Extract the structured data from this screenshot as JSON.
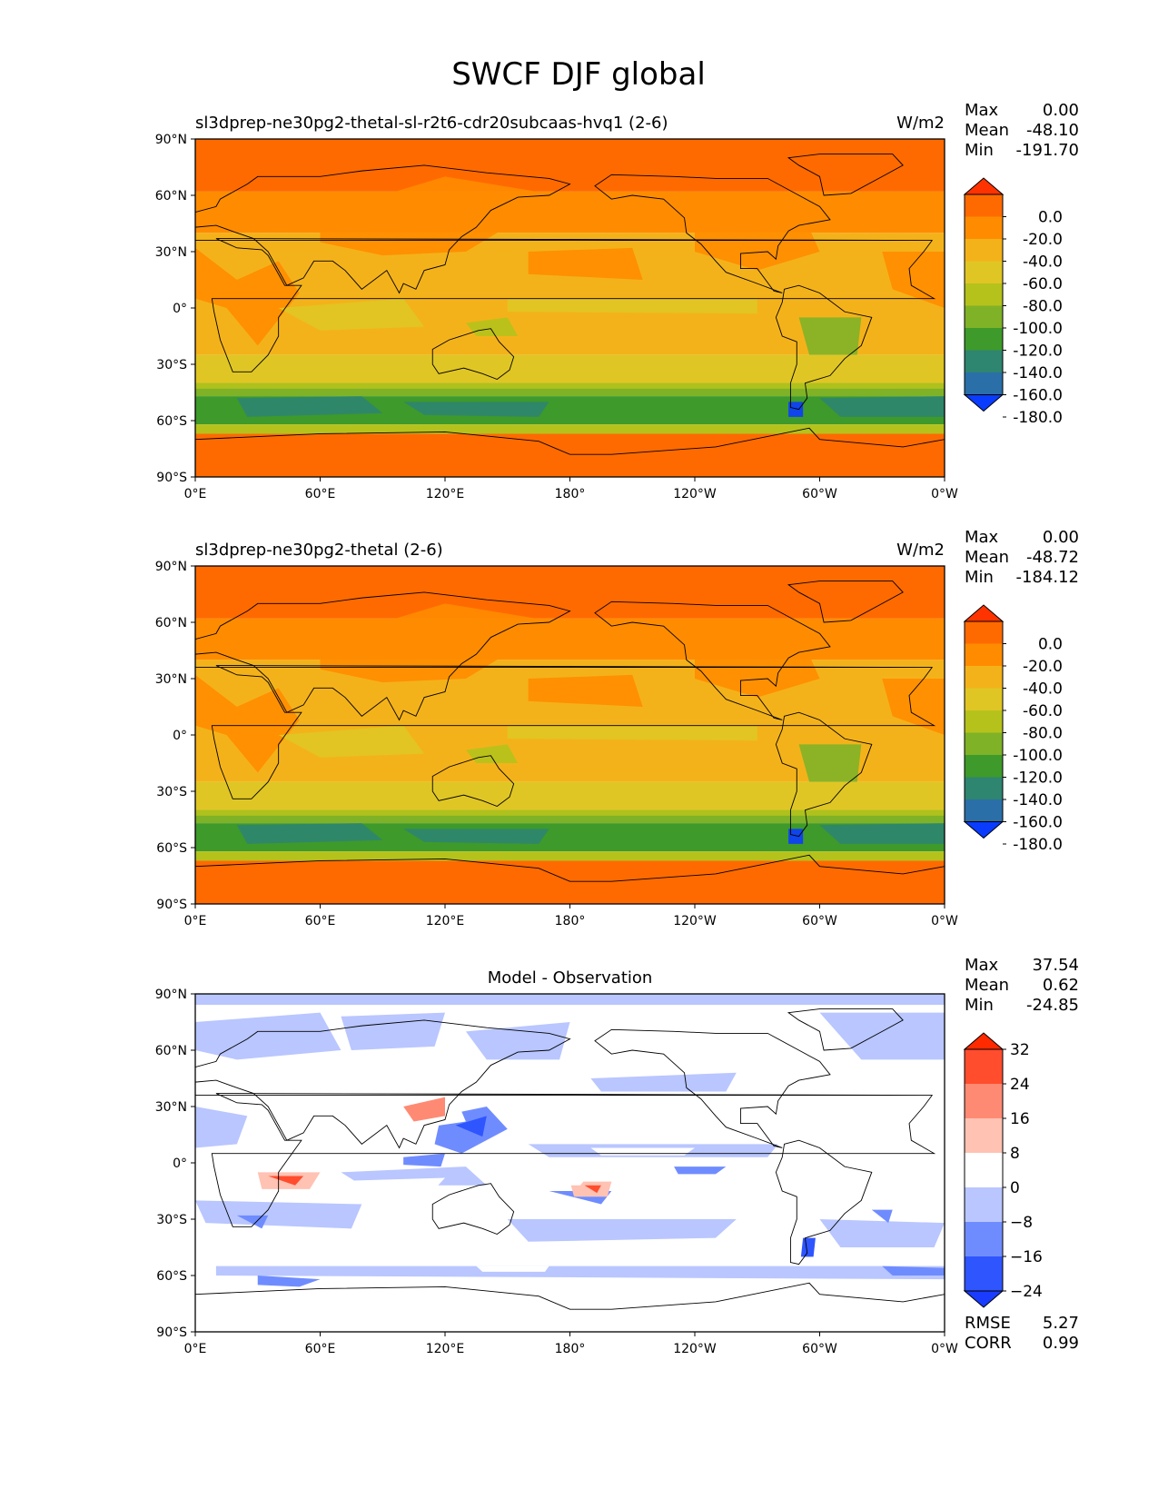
{
  "figure": {
    "title": "SWCF DJF global",
    "land_color": "#000000"
  },
  "axes_ticks": {
    "lat": [
      "90°N",
      "60°N",
      "30°N",
      "0°",
      "30°S",
      "60°S",
      "90°S"
    ],
    "lon": [
      "0°E",
      "60°E",
      "120°E",
      "180°",
      "120°W",
      "60°W",
      "0°W"
    ]
  },
  "panels": [
    {
      "id": "test",
      "title": "sl3dprep-ne30pg2-thetal-sl-r2t6-cdr20subcaas-hvq1 (2-6)",
      "units": "W/m2",
      "stats": [
        {
          "label": "Max",
          "value": "0.00"
        },
        {
          "label": "Mean",
          "value": "-48.10"
        },
        {
          "label": "Min",
          "value": "-191.70"
        }
      ],
      "colorbar": {
        "labels": [
          "0.0",
          "-20.0",
          "-40.0",
          "-60.0",
          "-80.0",
          "-100.0",
          "-120.0",
          "-140.0",
          "-160.0",
          "-180.0"
        ],
        "colors": [
          "#ff3300",
          "#ff6a00",
          "#ff8c00",
          "#f4b21a",
          "#e0c624",
          "#b5c21c",
          "#7fb227",
          "#3e9a2a",
          "#2e8570",
          "#2a6fa8",
          "#0a3cff"
        ]
      },
      "bands_deg": [
        {
          "lat": [
            90,
            62
          ],
          "level": 1
        },
        {
          "lat": [
            62,
            40
          ],
          "level": 2
        },
        {
          "lat": [
            40,
            8
          ],
          "level": 3
        },
        {
          "lat": [
            8,
            -25
          ],
          "level": 3
        },
        {
          "lat": [
            -25,
            -40
          ],
          "level": 4
        },
        {
          "lat": [
            -40,
            -47
          ],
          "level": 6
        },
        {
          "lat": [
            -47,
            -62
          ],
          "level": 7
        },
        {
          "lat": [
            -62,
            -67
          ],
          "level": 5
        },
        {
          "lat": [
            -67,
            -90
          ],
          "level": 1
        }
      ]
    },
    {
      "id": "reference",
      "title": "sl3dprep-ne30pg2-thetal (2-6)",
      "units": "W/m2",
      "stats": [
        {
          "label": "Max",
          "value": "0.00"
        },
        {
          "label": "Mean",
          "value": "-48.72"
        },
        {
          "label": "Min",
          "value": "-184.12"
        }
      ],
      "colorbar": {
        "labels": [
          "0.0",
          "-20.0",
          "-40.0",
          "-60.0",
          "-80.0",
          "-100.0",
          "-120.0",
          "-140.0",
          "-160.0",
          "-180.0"
        ],
        "colors": [
          "#ff3300",
          "#ff6a00",
          "#ff8c00",
          "#f4b21a",
          "#e0c624",
          "#b5c21c",
          "#7fb227",
          "#3e9a2a",
          "#2e8570",
          "#2a6fa8",
          "#0a3cff"
        ]
      },
      "bands_deg": [
        {
          "lat": [
            90,
            62
          ],
          "level": 1
        },
        {
          "lat": [
            62,
            40
          ],
          "level": 2
        },
        {
          "lat": [
            40,
            8
          ],
          "level": 3
        },
        {
          "lat": [
            8,
            -25
          ],
          "level": 3
        },
        {
          "lat": [
            -25,
            -40
          ],
          "level": 4
        },
        {
          "lat": [
            -40,
            -47
          ],
          "level": 6
        },
        {
          "lat": [
            -47,
            -62
          ],
          "level": 7
        },
        {
          "lat": [
            -62,
            -67
          ],
          "level": 5
        },
        {
          "lat": [
            -67,
            -90
          ],
          "level": 1
        }
      ]
    },
    {
      "id": "difference",
      "title": "Model - Observation",
      "units": "",
      "stats": [
        {
          "label": "Max",
          "value": "37.54"
        },
        {
          "label": "Mean",
          "value": "0.62"
        },
        {
          "label": "Min",
          "value": "-24.85"
        }
      ],
      "extra_stats": [
        {
          "label": "RMSE",
          "value": "5.27"
        },
        {
          "label": "CORR",
          "value": "0.99"
        }
      ],
      "colorbar": {
        "labels": [
          "32",
          "24",
          "16",
          "8",
          "0",
          "−8",
          "−16",
          "−24"
        ],
        "colors": [
          "#ff2a00",
          "#ff4d2e",
          "#ff8a73",
          "#ffc2b3",
          "#ffffff",
          "#b9c6ff",
          "#6f8cff",
          "#2f55ff",
          "#1a3cff"
        ]
      }
    }
  ],
  "chart_data": [
    {
      "type": "heatmap",
      "title": "sl3dprep-ne30pg2-thetal-sl-r2t6-cdr20subcaas-hvq1 (2-6)",
      "units": "W/m2",
      "xlabel": "",
      "ylabel": "",
      "xlim": [
        0,
        360
      ],
      "ylim": [
        -90,
        90
      ],
      "levels": [
        0,
        -20,
        -40,
        -60,
        -80,
        -100,
        -120,
        -140,
        -160,
        -180
      ],
      "zonal_mean_bands": [
        {
          "lat_range": [
            62,
            90
          ],
          "value": -20
        },
        {
          "lat_range": [
            40,
            62
          ],
          "value": -40
        },
        {
          "lat_range": [
            -25,
            40
          ],
          "value": -60
        },
        {
          "lat_range": [
            -40,
            -25
          ],
          "value": -80
        },
        {
          "lat_range": [
            -47,
            -40
          ],
          "value": -120
        },
        {
          "lat_range": [
            -62,
            -47
          ],
          "value": -140
        },
        {
          "lat_range": [
            -67,
            -62
          ],
          "value": -100
        },
        {
          "lat_range": [
            -90,
            -67
          ],
          "value": -20
        }
      ]
    },
    {
      "type": "heatmap",
      "title": "sl3dprep-ne30pg2-thetal (2-6)",
      "units": "W/m2",
      "xlabel": "",
      "ylabel": "",
      "xlim": [
        0,
        360
      ],
      "ylim": [
        -90,
        90
      ],
      "levels": [
        0,
        -20,
        -40,
        -60,
        -80,
        -100,
        -120,
        -140,
        -160,
        -180
      ]
    },
    {
      "type": "heatmap",
      "title": "Model - Observation",
      "xlabel": "",
      "ylabel": "",
      "xlim": [
        0,
        360
      ],
      "ylim": [
        -90,
        90
      ],
      "levels": [
        32,
        24,
        16,
        8,
        0,
        -8,
        -16,
        -24
      ]
    }
  ]
}
